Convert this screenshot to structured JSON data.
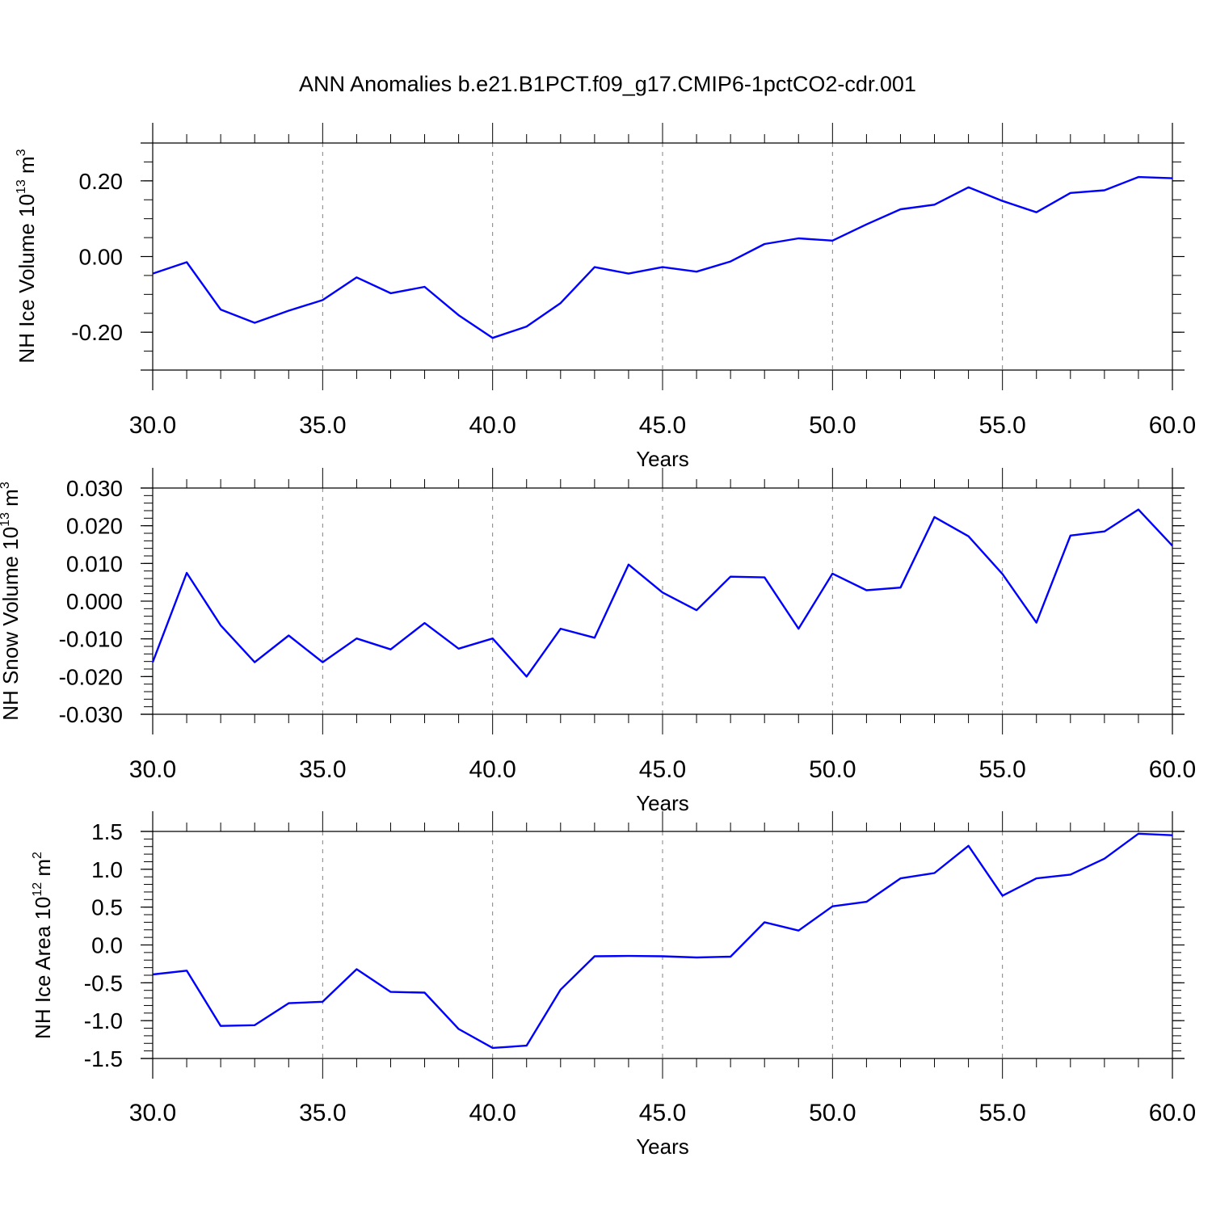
{
  "title": "ANN Anomalies b.e21.B1PCT.f09_g17.CMIP6-1pctCO2-cdr.001",
  "colors": {
    "line": "#0000ff",
    "axes": "#000000",
    "grid": "#808080"
  },
  "chart_data": [
    {
      "type": "line",
      "ylabel": {
        "text": "NH Ice Volume 10",
        "exp": "13",
        "unit": " m",
        "unit_exp": "3"
      },
      "xlabel": "Years",
      "xlim": [
        30,
        60
      ],
      "ylim": [
        -0.3,
        0.3
      ],
      "xticks": [
        "30.0",
        "35.0",
        "40.0",
        "45.0",
        "50.0",
        "55.0",
        "60.0"
      ],
      "yticks": [
        {
          "v": 0.2,
          "label": "0.20"
        },
        {
          "v": 0.0,
          "label": "0.00"
        },
        {
          "v": -0.2,
          "label": "-0.20"
        }
      ],
      "grid": "dashed vertical at major x ticks",
      "x": [
        30,
        31,
        32,
        33,
        34,
        35,
        36,
        37,
        38,
        39,
        40,
        41,
        42,
        43,
        44,
        45,
        46,
        47,
        48,
        49,
        50,
        51,
        52,
        53,
        54,
        55,
        56,
        57,
        58,
        59,
        60
      ],
      "y": [
        -0.045,
        -0.015,
        -0.14,
        -0.175,
        -0.143,
        -0.115,
        -0.055,
        -0.097,
        -0.08,
        -0.155,
        -0.215,
        -0.185,
        -0.123,
        -0.028,
        -0.045,
        -0.028,
        -0.04,
        -0.013,
        0.033,
        0.048,
        0.042,
        0.085,
        0.125,
        0.137,
        0.183,
        0.147,
        0.117,
        0.168,
        0.175,
        0.21,
        0.207
      ]
    },
    {
      "type": "line",
      "ylabel": {
        "text": "NH Snow Volume 10",
        "exp": "13",
        "unit": " m",
        "unit_exp": "3"
      },
      "xlabel": "Years",
      "xlim": [
        30,
        60
      ],
      "ylim": [
        -0.03,
        0.03
      ],
      "xticks": [
        "30.0",
        "35.0",
        "40.0",
        "45.0",
        "50.0",
        "55.0",
        "60.0"
      ],
      "yticks": [
        {
          "v": 0.03,
          "label": "0.030"
        },
        {
          "v": 0.02,
          "label": "0.020"
        },
        {
          "v": 0.01,
          "label": "0.010"
        },
        {
          "v": 0.0,
          "label": "0.000"
        },
        {
          "v": -0.01,
          "label": "-0.010"
        },
        {
          "v": -0.02,
          "label": "-0.020"
        },
        {
          "v": -0.03,
          "label": "-0.030"
        }
      ],
      "grid": "dashed vertical at major x ticks",
      "x": [
        30,
        31,
        32,
        33,
        34,
        35,
        36,
        37,
        38,
        39,
        40,
        41,
        42,
        43,
        44,
        45,
        46,
        47,
        48,
        49,
        50,
        51,
        52,
        53,
        54,
        55,
        56,
        57,
        58,
        59,
        60
      ],
      "y": [
        -0.0162,
        0.0075,
        -0.0064,
        -0.0162,
        -0.0091,
        -0.0162,
        -0.0099,
        -0.0128,
        -0.0058,
        -0.0126,
        -0.0099,
        -0.02,
        -0.0073,
        -0.0097,
        0.0097,
        0.0023,
        -0.0024,
        0.0065,
        0.0063,
        -0.0073,
        0.0073,
        0.0029,
        0.0036,
        0.0223,
        0.0172,
        0.0072,
        -0.0057,
        0.0174,
        0.0185,
        0.0243,
        0.0147
      ]
    },
    {
      "type": "line",
      "ylabel": {
        "text": "NH Ice Area 10",
        "exp": "12",
        "unit": " m",
        "unit_exp": "2"
      },
      "xlabel": "Years",
      "xlim": [
        30,
        60
      ],
      "ylim": [
        -1.5,
        1.5
      ],
      "xticks": [
        "30.0",
        "35.0",
        "40.0",
        "45.0",
        "50.0",
        "55.0",
        "60.0"
      ],
      "yticks": [
        {
          "v": 1.5,
          "label": "1.5"
        },
        {
          "v": 1.0,
          "label": "1.0"
        },
        {
          "v": 0.5,
          "label": "0.5"
        },
        {
          "v": 0.0,
          "label": "0.0"
        },
        {
          "v": -0.5,
          "label": "-0.5"
        },
        {
          "v": -1.0,
          "label": "-1.0"
        },
        {
          "v": -1.5,
          "label": "-1.5"
        }
      ],
      "grid": "dashed vertical at major x ticks",
      "x": [
        30,
        31,
        32,
        33,
        34,
        35,
        36,
        37,
        38,
        39,
        40,
        41,
        42,
        43,
        44,
        45,
        46,
        47,
        48,
        49,
        50,
        51,
        52,
        53,
        54,
        55,
        56,
        57,
        58,
        59,
        60
      ],
      "y": [
        -0.39,
        -0.34,
        -1.07,
        -1.06,
        -0.77,
        -0.75,
        -0.32,
        -0.62,
        -0.63,
        -1.11,
        -1.36,
        -1.33,
        -0.59,
        -0.15,
        -0.145,
        -0.15,
        -0.165,
        -0.155,
        0.3,
        0.19,
        0.51,
        0.57,
        0.88,
        0.95,
        1.31,
        0.65,
        0.88,
        0.93,
        1.14,
        1.47,
        1.45
      ]
    }
  ]
}
